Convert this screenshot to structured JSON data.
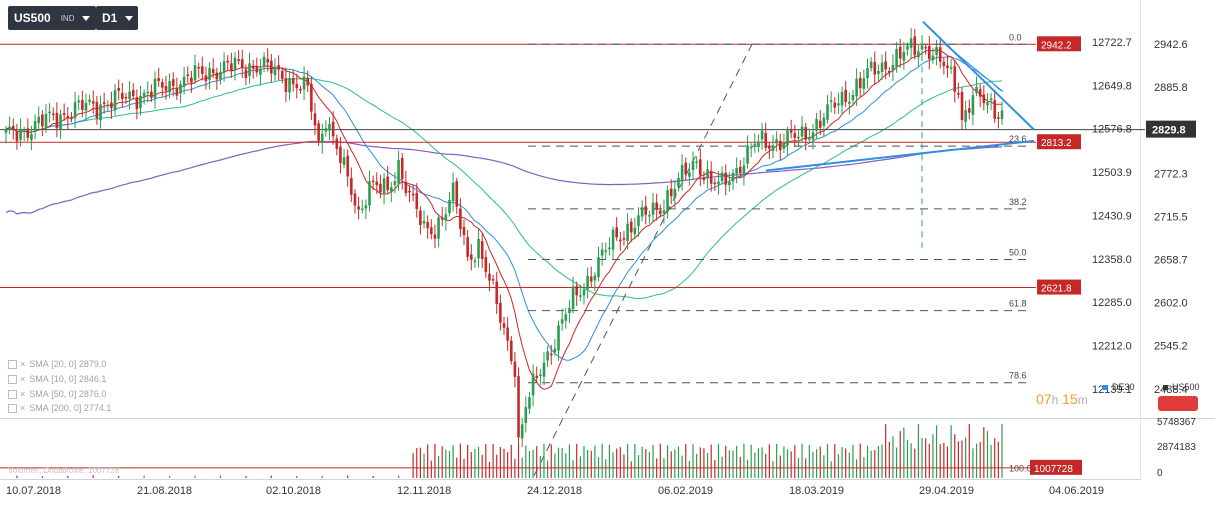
{
  "toolbar": {
    "symbol": "US500",
    "symbol_sub": "IND",
    "timeframe": "D1"
  },
  "legend": [
    {
      "label": "SMA",
      "params": "[20, 0]",
      "value": "2879.0"
    },
    {
      "label": "SMA",
      "params": "[10, 0]",
      "value": "2846.1"
    },
    {
      "label": "SMA",
      "params": "[50, 0]",
      "value": "2876.0"
    },
    {
      "label": "SMA",
      "params": "[200, 0]",
      "value": "2774.1"
    }
  ],
  "volume_legend": "Volumen, Dodatkowe: 1007728",
  "timer": {
    "hours": "07",
    "h": "h",
    "minutes": "15",
    "m": "m"
  },
  "compare": {
    "de30": "DE30",
    "us500": "US500"
  },
  "colors": {
    "up": "#2a9d52",
    "down": "#c62828",
    "sma10": "#d42424",
    "sma20": "#2f8fd8",
    "sma50": "#2ebd8a",
    "sma200": "#8a5cc0",
    "level": "#c62828",
    "trend": "#2f8fe0"
  },
  "chart_data": {
    "type": "candlestick",
    "instrument": "US500",
    "x_ticks": [
      "10.07.2018",
      "21.08.2018",
      "02.10.2018",
      "12.11.2018",
      "24.12.2018",
      "06.02.2019",
      "18.03.2019",
      "29.04.2019",
      "04.06.2019"
    ],
    "ylim_left": [
      12090,
      12780
    ],
    "ylim_right": [
      2450,
      2990
    ],
    "left_axis_ticks": [
      "12722.7",
      "12649.8",
      "12576.8",
      "12503.9",
      "12430.9",
      "12358.0",
      "12285.0",
      "12212.0",
      "12139.1"
    ],
    "right_axis_ticks": [
      "2942.6",
      "2885.8",
      "2772.3",
      "2715.5",
      "2658.7",
      "2602.0",
      "2545.2",
      "2488.4"
    ],
    "current_price": "2829.8",
    "levels": [
      {
        "value": 2942.2,
        "label": "2942.2"
      },
      {
        "value": 2813.2,
        "label": "2813.2"
      },
      {
        "value": 2621.8,
        "label": "2621.8"
      }
    ],
    "fibonacci": [
      {
        "label": "0.0",
        "value": 2942.2
      },
      {
        "label": "23.6",
        "value": 2808.0
      },
      {
        "label": "38.2",
        "value": 2725.5
      },
      {
        "label": "50.0",
        "value": 2658.7
      },
      {
        "label": "61.8",
        "value": 2591.5
      },
      {
        "label": "78.6",
        "value": 2496.5
      },
      {
        "label": "100.0",
        "value": 2374.0
      }
    ],
    "volume_axis": [
      "5748367",
      "2874183",
      "0"
    ],
    "volume_level": "1007728",
    "anchors": [
      [
        0,
        2820
      ],
      [
        18,
        2855
      ],
      [
        40,
        2880
      ],
      [
        58,
        2910
      ],
      [
        70,
        2915
      ],
      [
        78,
        2895
      ],
      [
        83,
        2880
      ],
      [
        86,
        2810
      ],
      [
        88,
        2850
      ],
      [
        93,
        2775
      ],
      [
        97,
        2720
      ],
      [
        100,
        2760
      ],
      [
        105,
        2745
      ],
      [
        108,
        2785
      ],
      [
        115,
        2695
      ],
      [
        118,
        2700
      ],
      [
        123,
        2745
      ],
      [
        127,
        2660
      ],
      [
        130,
        2680
      ],
      [
        136,
        2580
      ],
      [
        140,
        2520
      ],
      [
        141,
        2418
      ],
      [
        143,
        2465
      ],
      [
        148,
        2525
      ],
      [
        156,
        2605
      ],
      [
        168,
        2690
      ],
      [
        180,
        2730
      ],
      [
        190,
        2790
      ],
      [
        194,
        2760
      ],
      [
        197,
        2755
      ],
      [
        206,
        2810
      ],
      [
        219,
        2820
      ],
      [
        230,
        2870
      ],
      [
        238,
        2905
      ],
      [
        249,
        2935
      ],
      [
        253,
        2942
      ],
      [
        256,
        2925
      ],
      [
        262,
        2885
      ],
      [
        263,
        2845
      ],
      [
        266,
        2875
      ],
      [
        269,
        2865
      ],
      [
        273,
        2855
      ],
      [
        274,
        2829.8
      ]
    ]
  }
}
